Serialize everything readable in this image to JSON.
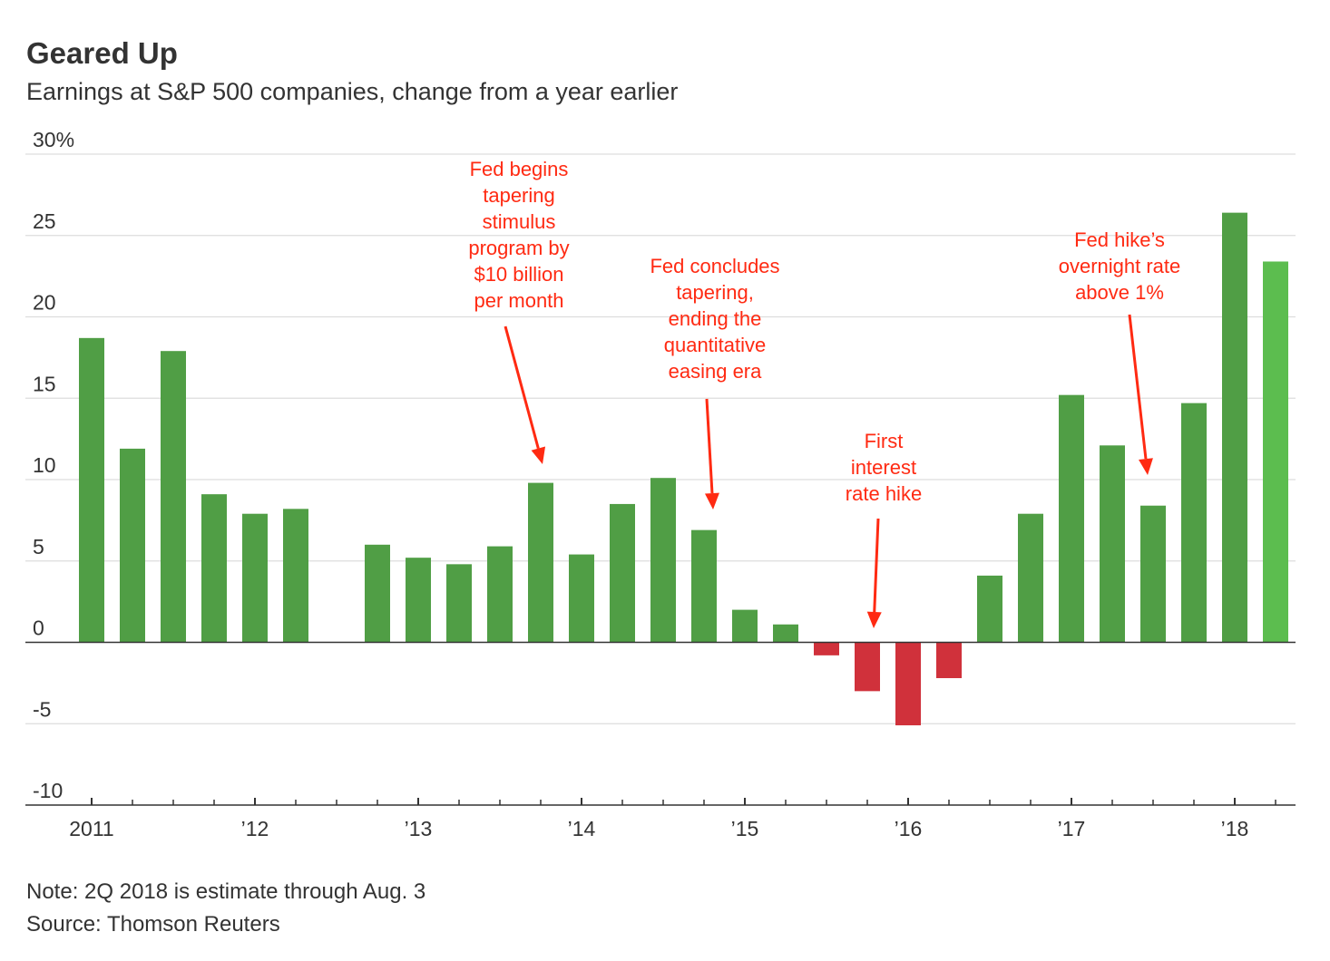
{
  "header": {
    "title": "Geared Up",
    "subtitle": "Earnings at S&P 500 companies, change from a year earlier"
  },
  "footer": {
    "note": "Note: 2Q 2018 is estimate through Aug. 3",
    "source": "Source: Thomson Reuters"
  },
  "colors": {
    "positive": "#509e45",
    "negative": "#d0313b",
    "estimate": "#5cbd4f",
    "annotation": "#ff2a12"
  },
  "chart_data": {
    "type": "bar",
    "title": "Geared Up",
    "subtitle": "Earnings at S&P 500 companies, change from a year earlier",
    "xlabel": "",
    "ylabel": "",
    "ylim": [
      -10,
      30
    ],
    "yticks": [
      {
        "value": 30,
        "label": "30%"
      },
      {
        "value": 25,
        "label": "25"
      },
      {
        "value": 20,
        "label": "20"
      },
      {
        "value": 15,
        "label": "15"
      },
      {
        "value": 10,
        "label": "10"
      },
      {
        "value": 5,
        "label": "5"
      },
      {
        "value": 0,
        "label": "0"
      },
      {
        "value": -5,
        "label": "-5"
      },
      {
        "value": -10,
        "label": "-10"
      }
    ],
    "grid": true,
    "legend": "none",
    "xticks": [
      {
        "index": 0,
        "label": "2011"
      },
      {
        "index": 4,
        "label": "’12"
      },
      {
        "index": 8,
        "label": "’13"
      },
      {
        "index": 12,
        "label": "’14"
      },
      {
        "index": 16,
        "label": "’15"
      },
      {
        "index": 20,
        "label": "’16"
      },
      {
        "index": 24,
        "label": "’17"
      },
      {
        "index": 28,
        "label": "’18"
      }
    ],
    "categories": [
      "1Q 2011",
      "2Q 2011",
      "3Q 2011",
      "4Q 2011",
      "1Q 2012",
      "2Q 2012",
      "3Q 2012",
      "4Q 2012",
      "1Q 2013",
      "2Q 2013",
      "3Q 2013",
      "4Q 2013",
      "1Q 2014",
      "2Q 2014",
      "3Q 2014",
      "4Q 2014",
      "1Q 2015",
      "2Q 2015",
      "3Q 2015",
      "4Q 2015",
      "1Q 2016",
      "2Q 2016",
      "3Q 2016",
      "4Q 2016",
      "1Q 2017",
      "2Q 2017",
      "3Q 2017",
      "4Q 2017",
      "1Q 2018",
      "2Q 2018"
    ],
    "values": [
      18.7,
      11.9,
      17.9,
      9.1,
      7.9,
      8.2,
      null,
      6.0,
      5.2,
      4.8,
      5.9,
      9.8,
      5.4,
      8.5,
      10.1,
      6.9,
      2.0,
      1.1,
      -0.8,
      -3.0,
      -5.1,
      -2.2,
      4.1,
      7.9,
      15.2,
      12.1,
      8.4,
      14.7,
      26.4,
      23.4
    ],
    "estimate_index": 29,
    "annotations": [
      {
        "lines": [
          "Fed begins",
          "tapering",
          "stimulus",
          "program by",
          "$10 billion",
          "per month"
        ],
        "target_index": 11
      },
      {
        "lines": [
          "Fed concludes",
          "tapering,",
          "ending the",
          "quantitative",
          "easing era"
        ],
        "target_index": 15
      },
      {
        "lines": [
          "First",
          "interest",
          "rate hike"
        ],
        "target_index": 19
      },
      {
        "lines": [
          "Fed hike’s",
          "overnight rate",
          "above 1%"
        ],
        "target_index": 26
      }
    ]
  }
}
